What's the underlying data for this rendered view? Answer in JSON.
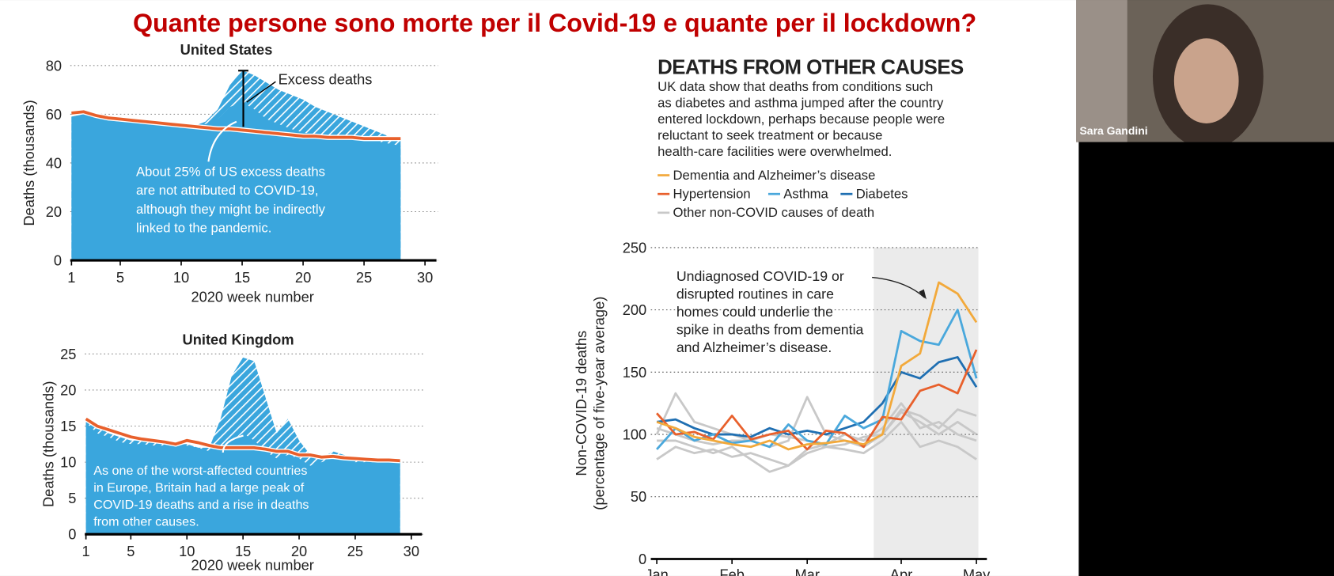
{
  "title": "Quante persone sono morte per il Covid-19 e quante per il lockdown?",
  "participant": "Sara Gandini",
  "chart_data": [
    {
      "type": "area",
      "title": "United States",
      "x_label": "2020 week number",
      "y_label": "Deaths (thousands)",
      "x": [
        1,
        2,
        3,
        4,
        5,
        6,
        7,
        8,
        9,
        10,
        11,
        12,
        13,
        14,
        15,
        16,
        17,
        18,
        19,
        20,
        21,
        22,
        23,
        24,
        25,
        26,
        27,
        28
      ],
      "series": [
        {
          "color": "#3aa6dd",
          "hatch": true,
          "values": [
            59,
            60,
            58.5,
            57.5,
            57,
            57,
            56.5,
            56,
            55.5,
            55,
            55,
            57,
            62,
            72,
            78,
            76,
            73,
            70,
            68,
            66,
            63,
            61,
            59,
            57,
            55,
            53,
            51,
            50
          ]
        },
        {
          "color": "#3aa6dd",
          "values": [
            59,
            60,
            58.5,
            57.5,
            57,
            57,
            56.5,
            56,
            55.5,
            55,
            55,
            56,
            58,
            63,
            65,
            62,
            58,
            56,
            54,
            52.5,
            51.5,
            51,
            50.5,
            50,
            49.5,
            49,
            48,
            47
          ]
        },
        {
          "color": "#e8602c",
          "line": true,
          "values": [
            60.5,
            61,
            59.5,
            58.5,
            58,
            57.5,
            57,
            56.5,
            56,
            55.5,
            55,
            54.5,
            54,
            54,
            53.5,
            53,
            52.5,
            52,
            51.5,
            51,
            51,
            50.5,
            50.5,
            50.5,
            50,
            50,
            50,
            50
          ]
        }
      ],
      "xlim": [
        0.9,
        30.8
      ],
      "ylim": [
        0,
        80
      ],
      "xticks": [
        1,
        5,
        10,
        15,
        20,
        25,
        30
      ],
      "yticks": [
        0,
        20,
        40,
        60,
        80
      ],
      "grid": true,
      "annotations": [
        [
          "Excess deaths"
        ],
        [
          "About 25% of US excess deaths",
          "are not attributed to COVID-19,",
          "although they might be indirectly",
          "linked to the pandemic."
        ]
      ]
    },
    {
      "type": "area",
      "title": "United Kingdom",
      "x_label": "2020 week number",
      "y_label": "Deaths (thousands)",
      "x": [
        1,
        2,
        3,
        4,
        5,
        6,
        7,
        8,
        9,
        10,
        11,
        12,
        13,
        14,
        15,
        16,
        17,
        18,
        19,
        20,
        21,
        22,
        23,
        24,
        25,
        26,
        27,
        28,
        29
      ],
      "series": [
        {
          "color": "#3aa6dd",
          "hatch": true,
          "values": [
            16,
            15,
            14,
            13.5,
            13,
            13,
            12.8,
            12.5,
            12.5,
            12.5,
            12,
            12,
            16,
            22,
            24.5,
            24,
            19,
            14,
            16,
            13,
            11,
            10.5,
            11.5,
            11,
            10.5,
            10.5,
            10.3,
            10.2,
            10.2
          ]
        },
        {
          "color": "#3aa6dd",
          "values": [
            15.5,
            14,
            13.5,
            12.8,
            12.5,
            12.5,
            12.3,
            12.3,
            12.3,
            12.3,
            12,
            11.5,
            12,
            13,
            14,
            13,
            11.5,
            10.5,
            11,
            10.5,
            9.5,
            10,
            10.5,
            10.5,
            10,
            10,
            10,
            10,
            10
          ]
        },
        {
          "color": "#e8602c",
          "line": true,
          "values": [
            16,
            15,
            14.5,
            14,
            13.5,
            13.2,
            13,
            12.8,
            12.5,
            13,
            12.7,
            12.3,
            12,
            12,
            12,
            12,
            11.8,
            11.5,
            11.5,
            11,
            11,
            10.7,
            10.8,
            10.6,
            10.5,
            10.4,
            10.3,
            10.3,
            10.2
          ]
        }
      ],
      "xlim": [
        0.9,
        30.8
      ],
      "ylim": [
        0,
        25
      ],
      "xticks": [
        1,
        5,
        10,
        15,
        20,
        25,
        30
      ],
      "yticks": [
        0,
        5,
        10,
        15,
        20,
        25
      ],
      "grid": true,
      "annotations": [
        [
          "As one of the worst-affected countries",
          "in Europe, Britain had a large peak of",
          "COVID-19 deaths and a rise in deaths",
          "from other causes."
        ]
      ]
    },
    {
      "type": "line",
      "title": "DEATHS FROM OTHER CAUSES",
      "subtitle": [
        "UK data show that deaths from conditions such",
        "as diabetes and asthma jumped after the country",
        "entered lockdown, perhaps because people were",
        "reluctant to seek treatment or because",
        "health-care facilities were overwhelmed."
      ],
      "y_label": [
        "Non-COVID-19 deaths",
        "(percentage of five-year average)"
      ],
      "categories": [
        "Jan",
        null,
        null,
        null,
        "Feb",
        null,
        null,
        null,
        "Mar",
        null,
        null,
        null,
        null,
        "Apr",
        null,
        null,
        null,
        "May"
      ],
      "series": [
        {
          "color": "#c8c8c8",
          "values": [
            80,
            90,
            85,
            88,
            82,
            85,
            80,
            75,
            85,
            90,
            88,
            85,
            95,
            110,
            90,
            95,
            90,
            80
          ]
        },
        {
          "color": "#c8c8c8",
          "values": [
            100,
            133,
            110,
            105,
            100,
            95,
            90,
            95,
            130,
            100,
            95,
            90,
            100,
            120,
            115,
            105,
            120,
            115
          ]
        },
        {
          "color": "#c8c8c8",
          "values": [
            95,
            95,
            90,
            85,
            90,
            80,
            70,
            75,
            88,
            92,
            100,
            95,
            105,
            125,
            105,
            110,
            100,
            95
          ]
        },
        {
          "name": "Other non-COVID causes of death",
          "color": "#c8c8c8",
          "values": [
            105,
            100,
            95,
            92,
            95,
            95,
            100,
            98,
            95,
            90,
            92,
            98,
            100,
            118,
            110,
            100,
            110,
            100
          ]
        },
        {
          "name": "Diabetes",
          "color": "#1f6fb2",
          "values": [
            110,
            112,
            105,
            100,
            100,
            98,
            105,
            100,
            103,
            100,
            105,
            110,
            125,
            150,
            145,
            158,
            162,
            138
          ]
        },
        {
          "name": "Asthma",
          "color": "#4aa8dc",
          "values": [
            88,
            105,
            95,
            100,
            93,
            95,
            90,
            108,
            95,
            92,
            115,
            105,
            112,
            183,
            175,
            172,
            200,
            145
          ]
        },
        {
          "name": "Hypertension",
          "color": "#e8602c",
          "values": [
            117,
            100,
            102,
            96,
            115,
            96,
            100,
            103,
            88,
            103,
            101,
            90,
            114,
            112,
            135,
            140,
            133,
            168
          ]
        },
        {
          "name": "Dementia and Alzheimer’s disease",
          "color": "#f2a93b",
          "values": [
            110,
            105,
            98,
            95,
            92,
            90,
            95,
            88,
            92,
            93,
            95,
            92,
            100,
            155,
            165,
            222,
            213,
            190
          ]
        }
      ],
      "ylim": [
        0,
        250
      ],
      "yticks": [
        0,
        50,
        100,
        150,
        200,
        250
      ],
      "grid": true,
      "annotations": [
        [
          "Undiagnosed COVID-19 or",
          "disrupted routines in care",
          "homes could underlie the",
          "spike in deaths from dementia",
          "and Alzheimer’s disease."
        ]
      ]
    }
  ]
}
